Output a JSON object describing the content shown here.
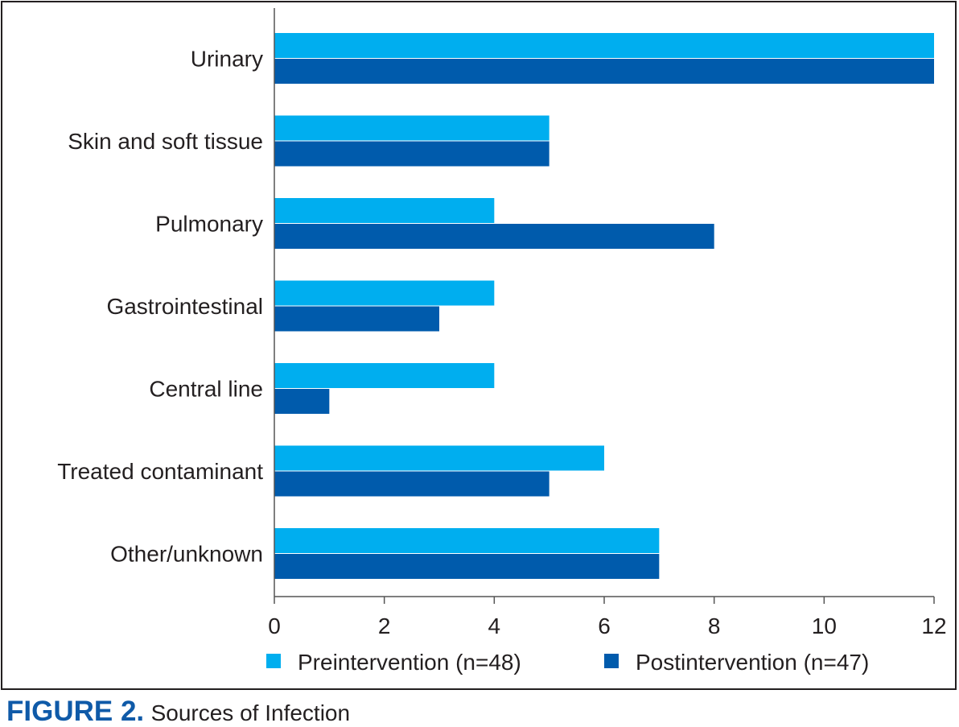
{
  "chart_data": {
    "type": "bar",
    "orientation": "horizontal",
    "categories": [
      "Urinary",
      "Skin and soft tissue",
      "Pulmonary",
      "Gastrointestinal",
      "Central line",
      "Treated contaminant",
      "Other/unknown"
    ],
    "series": [
      {
        "name": "Preintervention (n=48)",
        "color": "#00aeef",
        "values": [
          12,
          5,
          4,
          4,
          4,
          6,
          7
        ]
      },
      {
        "name": "Postintervention (n=47)",
        "color": "#005bac",
        "values": [
          12,
          5,
          8,
          3,
          1,
          5,
          7
        ]
      }
    ],
    "x_ticks": [
      "0",
      "2",
      "4",
      "6",
      "8",
      "10",
      "12"
    ],
    "xlim": [
      0,
      12
    ],
    "grid": false,
    "legend_position": "bottom"
  },
  "caption": {
    "figure_label": "FIGURE 2.",
    "title": "Sources of Infection"
  }
}
